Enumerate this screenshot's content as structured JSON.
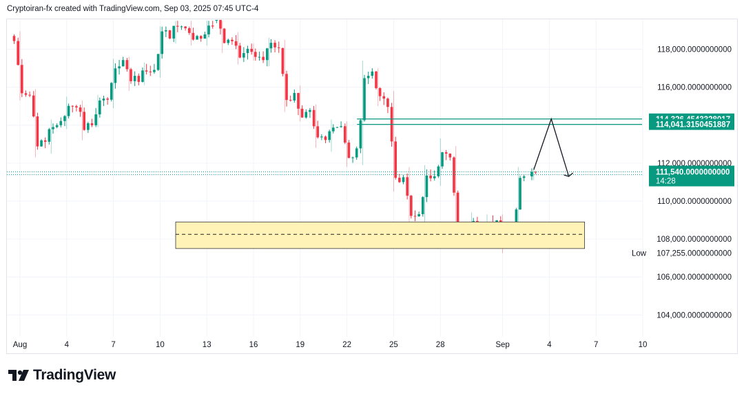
{
  "header": {
    "text": "Cryptoiran-fx created with TradingView.com, Sep 03, 2025 07:45 UTC-4"
  },
  "footer": {
    "logo_text": "TradingView",
    "logo_icon": "tradingview-logo-icon"
  },
  "colors": {
    "up": "#089981",
    "down": "#f23645",
    "zone_fill": "#fff3b8",
    "zone_border": "#333333",
    "line_teal": "#089981",
    "grid": "#f0f3fa"
  },
  "chart_data": {
    "type": "candlestick",
    "symbol_price_scale": "USD",
    "x_tick_labels": [
      "Aug",
      "4",
      "7",
      "10",
      "13",
      "16",
      "19",
      "22",
      "25",
      "28",
      "Sep",
      "4",
      "7",
      "10"
    ],
    "y_tick_labels": [
      "118,000.0000000000",
      "116,000.0000000000",
      "114,000.0000000000",
      "112,000.0000000000",
      "110,000.0000000000",
      "108,000.0000000000",
      "106,000.0000000000",
      "104,000.0000000000"
    ],
    "y_ticks": [
      118000,
      116000,
      114000,
      112000,
      110000,
      108000,
      106000,
      104000
    ],
    "ylim": [
      102850,
      119580
    ],
    "price_tags": [
      {
        "label": "114,326.4543328017",
        "value": 114326.45
      },
      {
        "label": "114,041.3150451887",
        "value": 114041.32
      }
    ],
    "current_price": {
      "label": "111,540.0000000000",
      "value": 111540,
      "countdown": "14:28"
    },
    "low": {
      "label": "Low",
      "price_label": "107,255.0000000000",
      "value": 107255
    },
    "demand_zone": {
      "top": 108900,
      "bottom": 107500,
      "midline": 108250,
      "start": "Aug 11",
      "end": "Sep 6"
    },
    "horizontal_lines": [
      {
        "value": 114326.45,
        "start": "Aug 23"
      },
      {
        "value": 114041.32,
        "start": "Aug 23"
      }
    ],
    "current_price_lines": [
      111540,
      111390
    ],
    "projection_path": [
      {
        "date": "Sep 3 00:00",
        "value": 111650
      },
      {
        "date": "Sep 4 03:00",
        "value": 114330
      },
      {
        "date": "Sep 5 06:00",
        "value": 111300
      }
    ],
    "candles_daily_approx": [
      {
        "date": "Aug 1",
        "open": 118700,
        "high": 118950,
        "low": 115300,
        "close": 115600
      },
      {
        "date": "Aug 2",
        "open": 115600,
        "high": 115900,
        "low": 112300,
        "close": 113200
      },
      {
        "date": "Aug 3",
        "open": 113200,
        "high": 114300,
        "low": 112500,
        "close": 114000
      },
      {
        "date": "Aug 4",
        "open": 114000,
        "high": 115500,
        "low": 113800,
        "close": 115000
      },
      {
        "date": "Aug 5",
        "open": 115000,
        "high": 115300,
        "low": 113200,
        "close": 114100
      },
      {
        "date": "Aug 6",
        "open": 114100,
        "high": 115600,
        "low": 113900,
        "close": 115400
      },
      {
        "date": "Aug 7",
        "open": 115400,
        "high": 117500,
        "low": 114900,
        "close": 117100
      },
      {
        "date": "Aug 8",
        "open": 117100,
        "high": 117600,
        "low": 115800,
        "close": 116600
      },
      {
        "date": "Aug 9",
        "open": 116600,
        "high": 117300,
        "low": 116100,
        "close": 116800
      },
      {
        "date": "Aug 10",
        "open": 116800,
        "high": 119200,
        "low": 116500,
        "close": 119000
      },
      {
        "date": "Aug 11",
        "open": 119000,
        "high": 119500,
        "low": 118300,
        "close": 119200
      },
      {
        "date": "Aug 12",
        "open": 119200,
        "high": 119500,
        "low": 118200,
        "close": 118700
      },
      {
        "date": "Aug 13",
        "open": 118700,
        "high": 119500,
        "low": 118200,
        "close": 119200
      },
      {
        "date": "Aug 14",
        "open": 119500,
        "high": 119500,
        "low": 117800,
        "close": 118500
      },
      {
        "date": "Aug 15",
        "open": 118500,
        "high": 118900,
        "low": 117200,
        "close": 117800
      },
      {
        "date": "Aug 16",
        "open": 117800,
        "high": 118300,
        "low": 117400,
        "close": 117600
      },
      {
        "date": "Aug 17",
        "open": 117600,
        "high": 118600,
        "low": 117100,
        "close": 118100
      },
      {
        "date": "Aug 18",
        "open": 118100,
        "high": 118500,
        "low": 114700,
        "close": 115300
      },
      {
        "date": "Aug 19",
        "open": 115300,
        "high": 116100,
        "low": 114200,
        "close": 114700
      },
      {
        "date": "Aug 20",
        "open": 114700,
        "high": 115100,
        "low": 112800,
        "close": 113400
      },
      {
        "date": "Aug 21",
        "open": 113400,
        "high": 114300,
        "low": 112600,
        "close": 113900
      },
      {
        "date": "Aug 22",
        "open": 113900,
        "high": 114200,
        "low": 111800,
        "close": 112300
      },
      {
        "date": "Aug 23",
        "open": 112300,
        "high": 117400,
        "low": 111900,
        "close": 116600
      },
      {
        "date": "Aug 24",
        "open": 116600,
        "high": 117000,
        "low": 115000,
        "close": 115400
      },
      {
        "date": "Aug 25",
        "open": 115400,
        "high": 115800,
        "low": 110500,
        "close": 111000
      },
      {
        "date": "Aug 26",
        "open": 111000,
        "high": 111800,
        "low": 108700,
        "close": 109200
      },
      {
        "date": "Aug 27",
        "open": 109200,
        "high": 111900,
        "low": 108900,
        "close": 111200
      },
      {
        "date": "Aug 28",
        "open": 111200,
        "high": 113300,
        "low": 110800,
        "close": 112500
      },
      {
        "date": "Aug 29",
        "open": 112500,
        "high": 112900,
        "low": 107700,
        "close": 108300
      },
      {
        "date": "Aug 30",
        "open": 108300,
        "high": 109400,
        "low": 107600,
        "close": 108400
      },
      {
        "date": "Aug 31",
        "open": 108400,
        "high": 109300,
        "low": 107900,
        "close": 108600
      },
      {
        "date": "Sep 1",
        "open": 108600,
        "high": 109300,
        "low": 107255,
        "close": 108100
      },
      {
        "date": "Sep 2",
        "open": 108100,
        "high": 111800,
        "low": 107900,
        "close": 111300
      },
      {
        "date": "Sep 3",
        "open": 111300,
        "high": 111800,
        "low": 111100,
        "close": 111540
      }
    ]
  }
}
